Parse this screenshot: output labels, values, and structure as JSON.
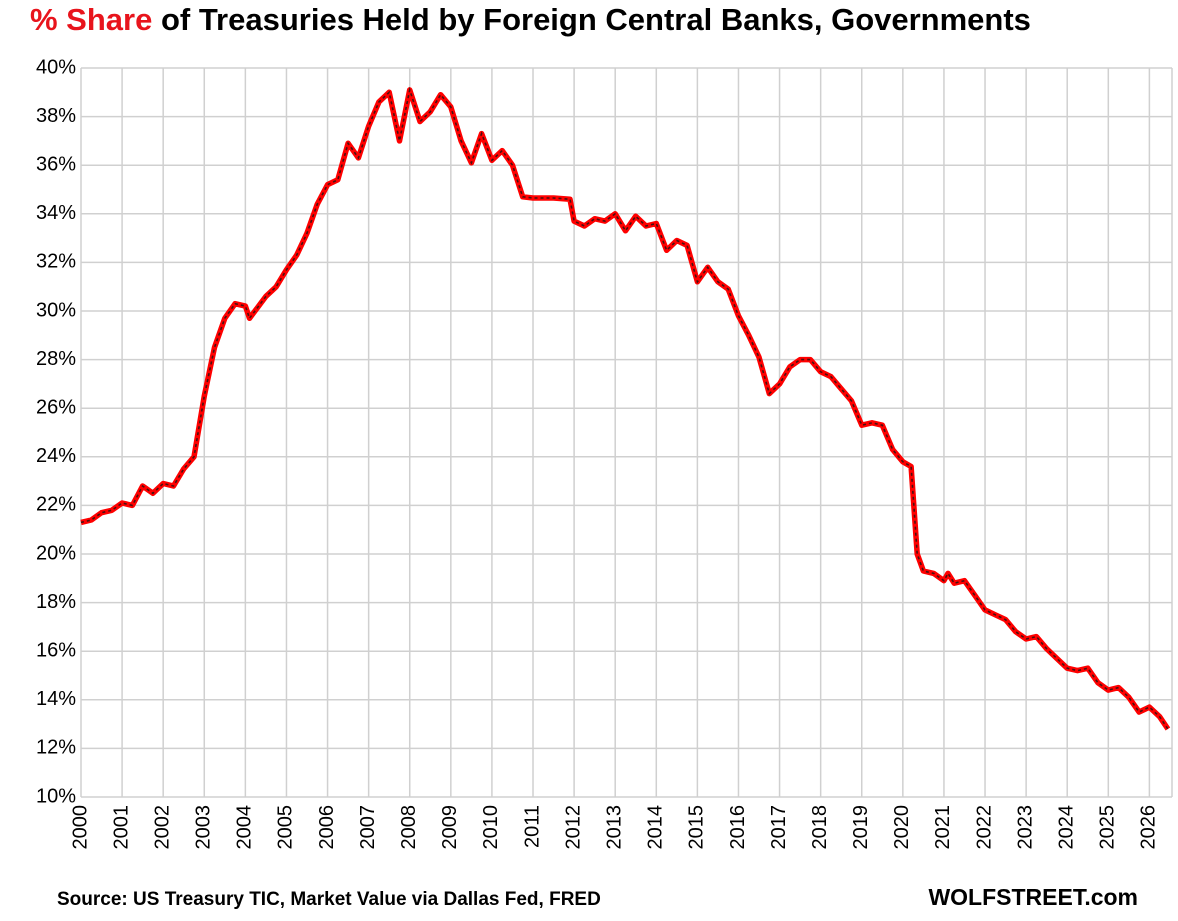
{
  "chart_data": {
    "type": "line",
    "title_highlight": "% Share",
    "title": " of Treasuries Held by Foreign Central Banks, Governments",
    "source": "Source: US Treasury  TIC, Market Value via Dallas Fed, FRED",
    "watermark": "WOLFSTREET.com",
    "x": [
      2000.0,
      2000.25,
      2000.5,
      2000.75,
      2001.0,
      2001.25,
      2001.5,
      2001.75,
      2002.0,
      2002.25,
      2002.5,
      2002.75,
      2003.0,
      2003.25,
      2003.5,
      2003.75,
      2004.0,
      2004.1,
      2004.5,
      2004.75,
      2005.0,
      2005.25,
      2005.5,
      2005.75,
      2006.0,
      2006.25,
      2006.5,
      2006.75,
      2007.0,
      2007.25,
      2007.5,
      2007.75,
      2008.0,
      2008.25,
      2008.5,
      2008.75,
      2009.0,
      2009.25,
      2009.5,
      2009.75,
      2010.0,
      2010.25,
      2010.5,
      2010.75,
      2011.0,
      2011.5,
      2011.9,
      2012.0,
      2012.25,
      2012.5,
      2012.75,
      2013.0,
      2013.25,
      2013.5,
      2013.75,
      2014.0,
      2014.25,
      2014.5,
      2014.75,
      2015.0,
      2015.25,
      2015.5,
      2015.75,
      2016.0,
      2016.25,
      2016.5,
      2016.75,
      2017.0,
      2017.25,
      2017.5,
      2017.75,
      2018.0,
      2018.25,
      2018.5,
      2018.75,
      2019.0,
      2019.25,
      2019.5,
      2019.75,
      2020.0,
      2020.2,
      2020.35,
      2020.5,
      2020.75,
      2021.0,
      2021.1,
      2021.25,
      2021.5,
      2021.75,
      2022.0,
      2022.25,
      2022.5,
      2022.75,
      2023.0,
      2023.25,
      2023.5,
      2023.75,
      2024.0,
      2024.25,
      2024.5,
      2024.75,
      2025.0,
      2025.25,
      2025.5,
      2025.75,
      2026.0,
      2026.25,
      2026.45
    ],
    "series": [
      {
        "color": "#ff0000",
        "values": [
          21.3,
          21.4,
          21.7,
          21.8,
          22.1,
          22.0,
          22.8,
          22.5,
          22.9,
          22.8,
          23.5,
          24.0,
          26.5,
          28.5,
          29.7,
          30.3,
          30.2,
          29.7,
          30.6,
          31.0,
          31.7,
          32.3,
          33.2,
          34.4,
          35.2,
          35.4,
          36.9,
          36.3,
          37.6,
          38.6,
          39.0,
          37.0,
          39.1,
          37.8,
          38.2,
          38.9,
          38.4,
          37.0,
          36.1,
          37.3,
          36.2,
          36.6,
          36.0,
          34.7,
          34.65,
          34.65,
          34.6,
          33.7,
          33.5,
          33.8,
          33.7,
          34.0,
          33.3,
          33.9,
          33.5,
          33.6,
          32.5,
          32.9,
          32.7,
          31.2,
          31.8,
          31.2,
          30.9,
          29.8,
          29.0,
          28.1,
          26.6,
          27.0,
          27.7,
          28.0,
          28.0,
          27.5,
          27.3,
          26.8,
          26.3,
          25.3,
          25.4,
          25.3,
          24.3,
          23.8,
          23.6,
          20.0,
          19.3,
          19.2,
          18.9,
          19.2,
          18.8,
          18.9,
          18.3,
          17.7,
          17.5,
          17.3,
          16.8,
          16.5,
          16.6,
          16.1,
          15.7,
          15.3,
          15.2,
          15.3,
          14.7,
          14.4,
          14.5,
          14.1,
          13.5,
          13.7,
          13.3,
          12.8
        ]
      }
    ],
    "xlim": [
      2000,
      2026.55
    ],
    "xticks": [
      2000,
      2001,
      2002,
      2003,
      2004,
      2005,
      2006,
      2007,
      2008,
      2009,
      2010,
      2011,
      2012,
      2013,
      2014,
      2015,
      2016,
      2017,
      2018,
      2019,
      2020,
      2021,
      2022,
      2023,
      2024,
      2025,
      2026
    ],
    "ylim": [
      10,
      40
    ],
    "yticks": [
      {
        "value": 10,
        "label": "10%"
      },
      {
        "value": 12,
        "label": "12%"
      },
      {
        "value": 14,
        "label": "14%"
      },
      {
        "value": 16,
        "label": "16%"
      },
      {
        "value": 18,
        "label": "18%"
      },
      {
        "value": 20,
        "label": "20%"
      },
      {
        "value": 22,
        "label": "22%"
      },
      {
        "value": 24,
        "label": "24%"
      },
      {
        "value": 26,
        "label": "26%"
      },
      {
        "value": 28,
        "label": "28%"
      },
      {
        "value": 30,
        "label": "30%"
      },
      {
        "value": 32,
        "label": "32%"
      },
      {
        "value": 34,
        "label": "34%"
      },
      {
        "value": 36,
        "label": "36%"
      },
      {
        "value": 38,
        "label": "38%"
      },
      {
        "value": 40,
        "label": "40%"
      }
    ],
    "grid": true
  }
}
